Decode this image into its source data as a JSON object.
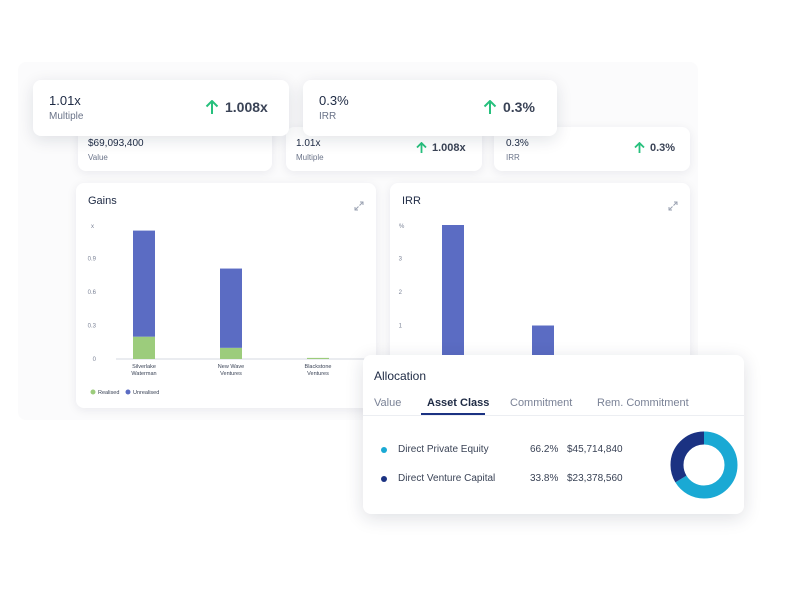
{
  "kpis_back": [
    {
      "value": "$69,093,400",
      "label": "Value"
    },
    {
      "value": "1.01x",
      "label": "Multiple",
      "change": "1.008x"
    },
    {
      "value": "0.3%",
      "label": "IRR",
      "change": "0.3%"
    }
  ],
  "kpis_front": [
    {
      "value": "1.01x",
      "label": "Multiple",
      "change": "1.008x"
    },
    {
      "value": "0.3%",
      "label": "IRR",
      "change": "0.3%"
    }
  ],
  "colors": {
    "realised": "#9ccc7c",
    "unrealised": "#5b6cc3",
    "accent_up": "#27c07d",
    "pe": "#1aa9d4",
    "vc": "#1b3282"
  },
  "chart_data": [
    {
      "type": "bar",
      "title": "Gains",
      "ylabel": "x",
      "yticks": [
        "0",
        "0.3",
        "0.6",
        "0.9"
      ],
      "ylim": [
        0,
        1.2
      ],
      "categories": [
        "Silverlake Waterman",
        "New Wave Ventures",
        "Blackstone Ventures"
      ],
      "category_lines": [
        [
          "Silverlake",
          "Waterman"
        ],
        [
          "New Wave",
          "Ventures"
        ],
        [
          "Blackstone",
          "Ventures"
        ]
      ],
      "series": [
        {
          "name": "Realised",
          "values": [
            0.2,
            0.1,
            0.01
          ]
        },
        {
          "name": "Unrealised",
          "values": [
            0.95,
            0.71,
            0
          ]
        }
      ],
      "legend": [
        "Realised",
        "Unrealised"
      ]
    },
    {
      "type": "bar",
      "title": "IRR",
      "ylabel": "%",
      "yticks": [
        "1",
        "2",
        "3"
      ],
      "ylim": [
        0,
        4
      ],
      "values": [
        4,
        1
      ]
    }
  ],
  "allocation": {
    "title": "Allocation",
    "tabs": [
      "Value",
      "Asset Class",
      "Commitment",
      "Rem. Commitment"
    ],
    "active_tab": "Asset Class",
    "rows": [
      {
        "name": "Direct Private Equity",
        "pct": "66.2%",
        "amount": "$45,714,840",
        "share": 66.2
      },
      {
        "name": "Direct Venture Capital",
        "pct": "33.8%",
        "amount": "$23,378,560",
        "share": 33.8
      }
    ]
  }
}
